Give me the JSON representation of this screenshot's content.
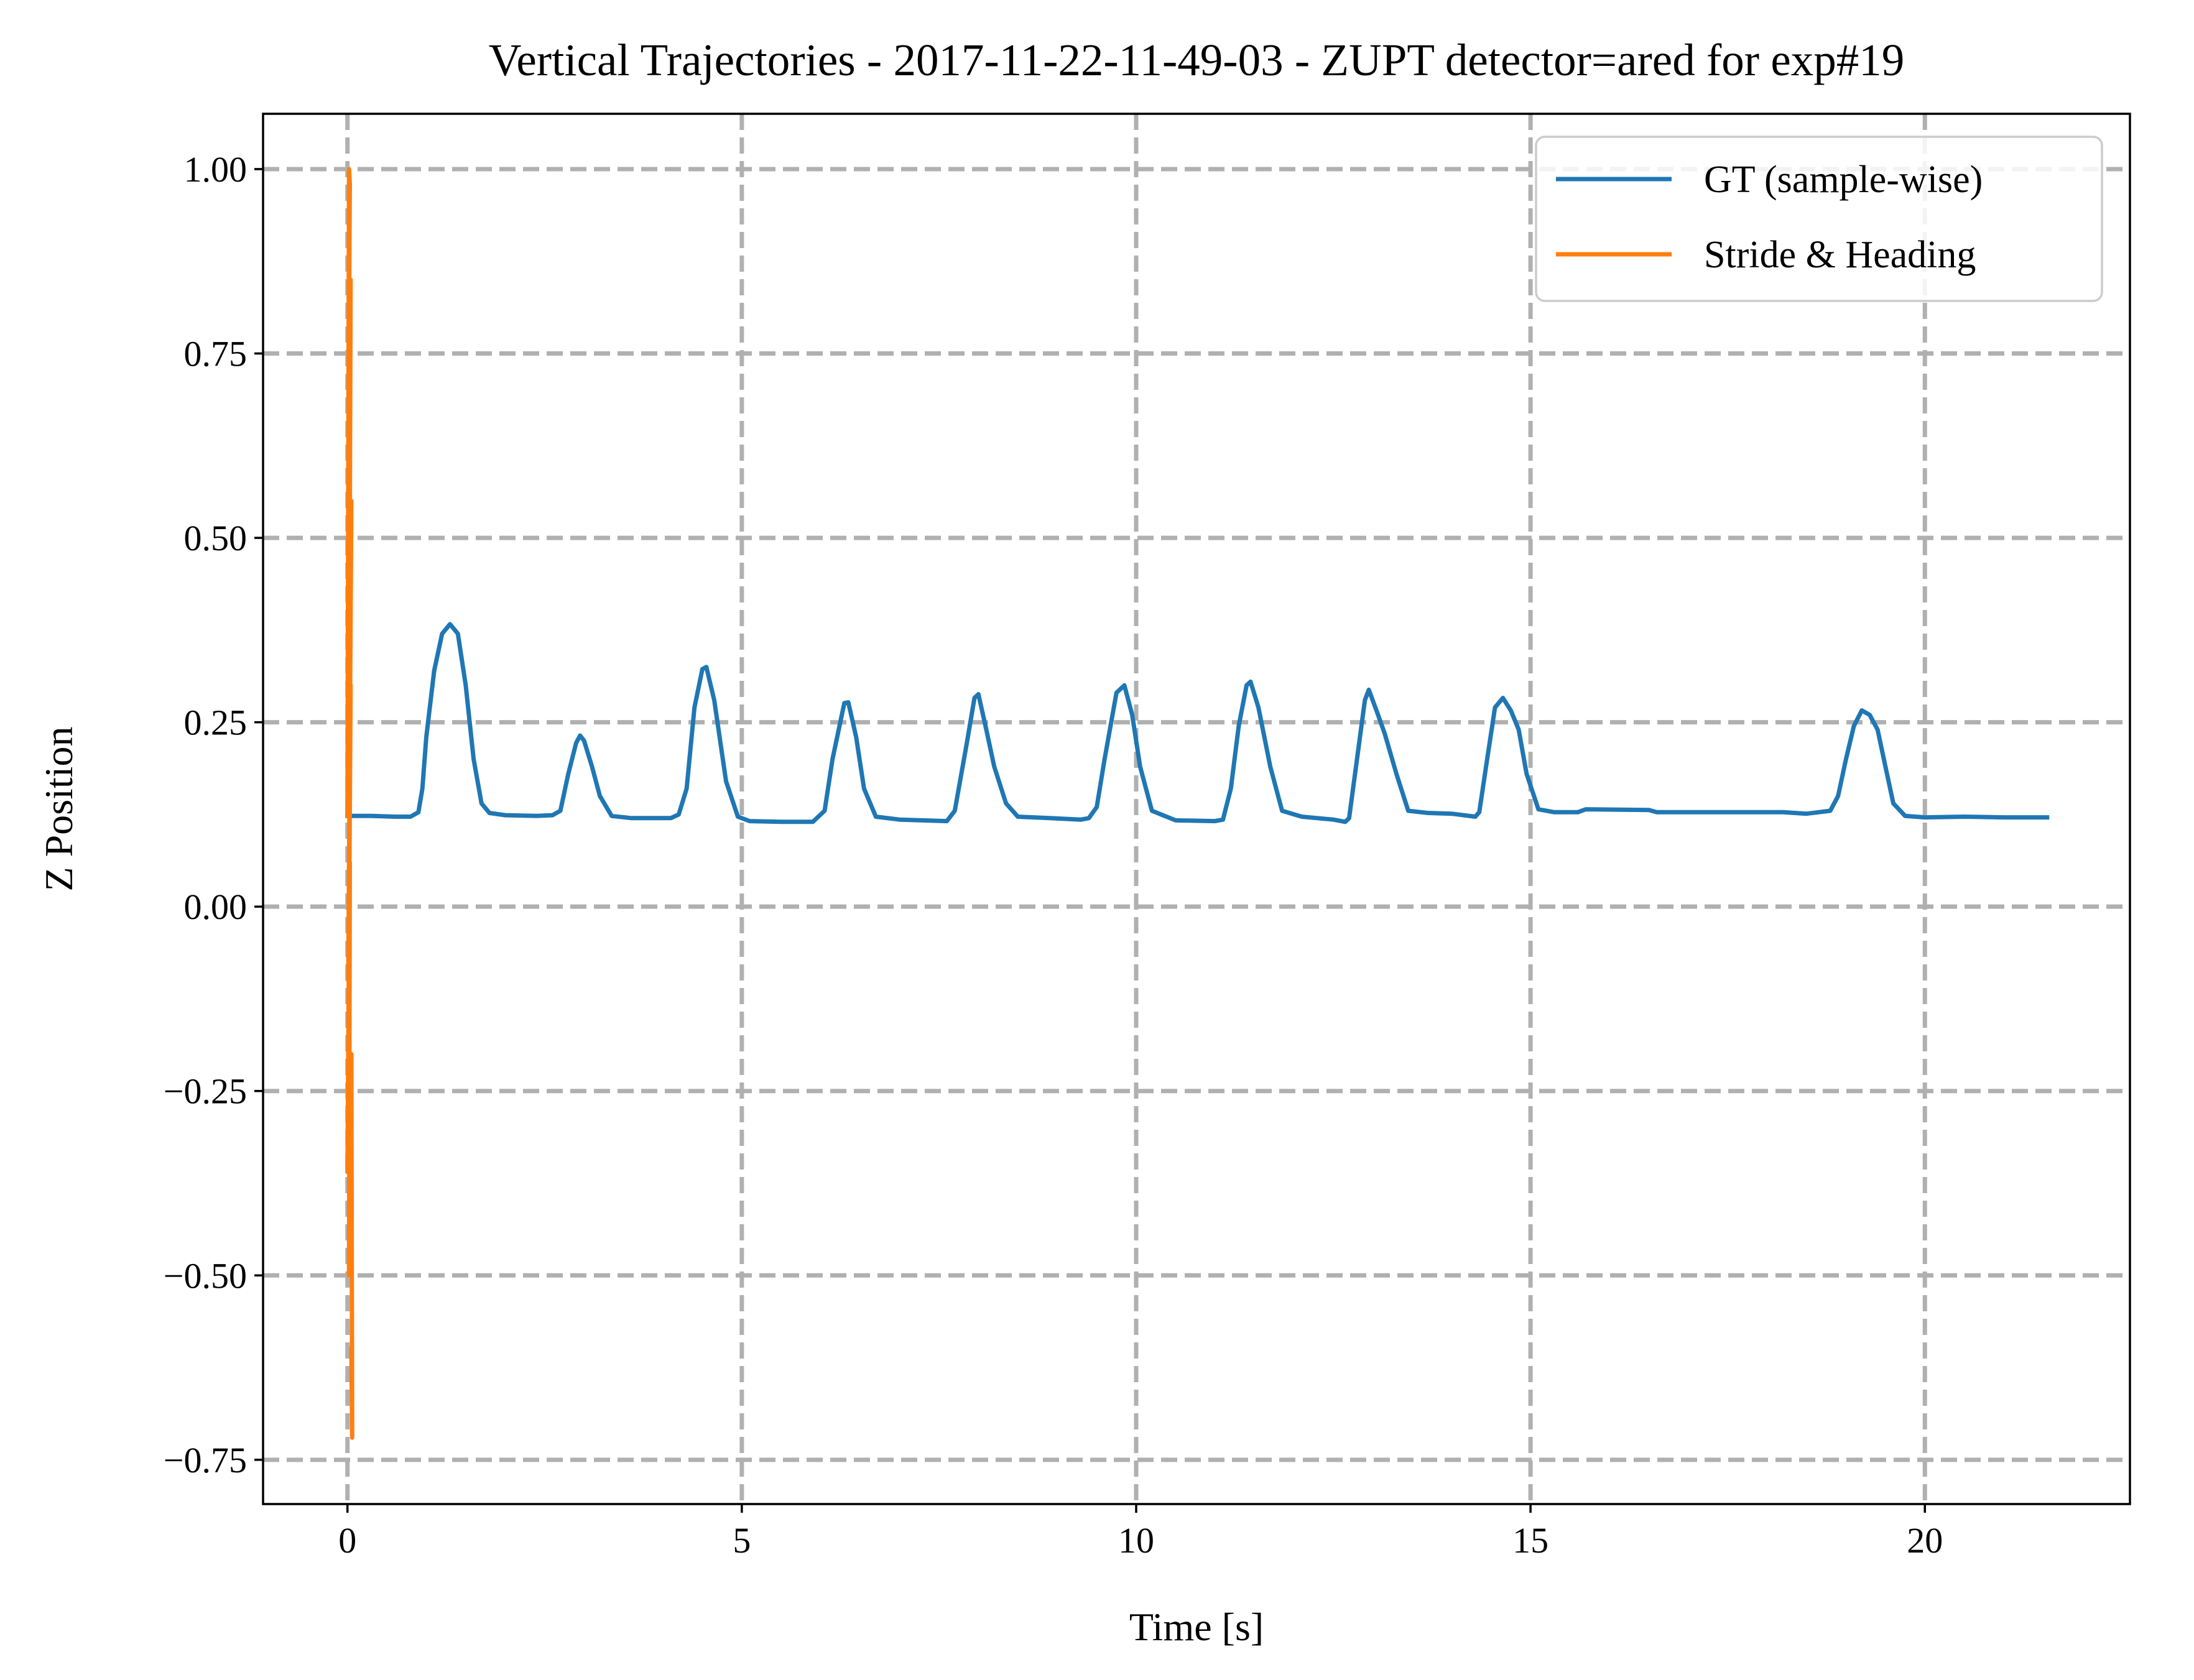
{
  "chart_data": {
    "type": "line",
    "title": "Vertical Trajectories - 2017-11-22-11-49-03 - ZUPT detector=ared for exp#19",
    "xlabel": "Time [s]",
    "ylabel": "Z Position",
    "xlim": [
      -1.07,
      22.6
    ],
    "ylim": [
      -0.81,
      1.075
    ],
    "xticks": [
      0,
      5,
      10,
      15,
      20
    ],
    "xtick_labels": [
      "0",
      "5",
      "10",
      "15",
      "20"
    ],
    "yticks": [
      1.0,
      0.75,
      0.5,
      0.25,
      0.0,
      -0.25,
      -0.5,
      -0.75
    ],
    "ytick_labels": [
      "1.00",
      "0.75",
      "0.50",
      "0.25",
      "0.00",
      "−0.25",
      "−0.50",
      "−0.75"
    ],
    "grid": true,
    "grid_style": "dashed",
    "legend_position": "upper right",
    "series": [
      {
        "name": "GT (sample-wise)",
        "color": "#1f77b4",
        "points": [
          [
            0.0,
            0.123
          ],
          [
            0.3,
            0.123
          ],
          [
            0.6,
            0.122
          ],
          [
            0.8,
            0.122
          ],
          [
            0.9,
            0.128
          ],
          [
            0.95,
            0.16
          ],
          [
            1.0,
            0.23
          ],
          [
            1.1,
            0.32
          ],
          [
            1.2,
            0.37
          ],
          [
            1.3,
            0.383
          ],
          [
            1.4,
            0.37
          ],
          [
            1.5,
            0.3
          ],
          [
            1.6,
            0.2
          ],
          [
            1.7,
            0.14
          ],
          [
            1.8,
            0.127
          ],
          [
            2.0,
            0.124
          ],
          [
            2.4,
            0.123
          ],
          [
            2.6,
            0.124
          ],
          [
            2.7,
            0.13
          ],
          [
            2.8,
            0.18
          ],
          [
            2.9,
            0.222
          ],
          [
            2.95,
            0.232
          ],
          [
            3.0,
            0.225
          ],
          [
            3.1,
            0.19
          ],
          [
            3.2,
            0.15
          ],
          [
            3.35,
            0.123
          ],
          [
            3.6,
            0.12
          ],
          [
            4.1,
            0.12
          ],
          [
            4.2,
            0.125
          ],
          [
            4.3,
            0.16
          ],
          [
            4.4,
            0.27
          ],
          [
            4.5,
            0.322
          ],
          [
            4.55,
            0.325
          ],
          [
            4.65,
            0.28
          ],
          [
            4.8,
            0.17
          ],
          [
            4.95,
            0.122
          ],
          [
            5.1,
            0.116
          ],
          [
            5.5,
            0.115
          ],
          [
            5.9,
            0.115
          ],
          [
            6.05,
            0.13
          ],
          [
            6.15,
            0.2
          ],
          [
            6.3,
            0.276
          ],
          [
            6.35,
            0.277
          ],
          [
            6.45,
            0.23
          ],
          [
            6.55,
            0.16
          ],
          [
            6.7,
            0.122
          ],
          [
            7.0,
            0.118
          ],
          [
            7.6,
            0.116
          ],
          [
            7.7,
            0.13
          ],
          [
            7.85,
            0.22
          ],
          [
            7.95,
            0.283
          ],
          [
            8.0,
            0.288
          ],
          [
            8.1,
            0.24
          ],
          [
            8.2,
            0.19
          ],
          [
            8.35,
            0.14
          ],
          [
            8.5,
            0.122
          ],
          [
            8.9,
            0.12
          ],
          [
            9.3,
            0.118
          ],
          [
            9.4,
            0.12
          ],
          [
            9.5,
            0.135
          ],
          [
            9.6,
            0.2
          ],
          [
            9.75,
            0.29
          ],
          [
            9.85,
            0.3
          ],
          [
            9.95,
            0.26
          ],
          [
            10.05,
            0.19
          ],
          [
            10.2,
            0.13
          ],
          [
            10.5,
            0.117
          ],
          [
            11.0,
            0.116
          ],
          [
            11.1,
            0.118
          ],
          [
            11.2,
            0.16
          ],
          [
            11.3,
            0.245
          ],
          [
            11.4,
            0.3
          ],
          [
            11.45,
            0.305
          ],
          [
            11.55,
            0.27
          ],
          [
            11.7,
            0.19
          ],
          [
            11.85,
            0.13
          ],
          [
            12.1,
            0.122
          ],
          [
            12.5,
            0.118
          ],
          [
            12.65,
            0.115
          ],
          [
            12.7,
            0.12
          ],
          [
            12.8,
            0.2
          ],
          [
            12.9,
            0.28
          ],
          [
            12.95,
            0.294
          ],
          [
            13.05,
            0.265
          ],
          [
            13.15,
            0.235
          ],
          [
            13.3,
            0.18
          ],
          [
            13.45,
            0.13
          ],
          [
            13.7,
            0.127
          ],
          [
            14.0,
            0.126
          ],
          [
            14.3,
            0.122
          ],
          [
            14.35,
            0.128
          ],
          [
            14.45,
            0.2
          ],
          [
            14.55,
            0.27
          ],
          [
            14.65,
            0.283
          ],
          [
            14.75,
            0.266
          ],
          [
            14.85,
            0.24
          ],
          [
            14.95,
            0.18
          ],
          [
            15.1,
            0.132
          ],
          [
            15.3,
            0.128
          ],
          [
            15.6,
            0.128
          ],
          [
            15.7,
            0.132
          ],
          [
            16.5,
            0.131
          ],
          [
            16.6,
            0.128
          ],
          [
            18.2,
            0.128
          ],
          [
            18.5,
            0.126
          ],
          [
            18.8,
            0.13
          ],
          [
            18.9,
            0.15
          ],
          [
            19.0,
            0.2
          ],
          [
            19.1,
            0.245
          ],
          [
            19.2,
            0.266
          ],
          [
            19.3,
            0.26
          ],
          [
            19.4,
            0.24
          ],
          [
            19.5,
            0.19
          ],
          [
            19.6,
            0.14
          ],
          [
            19.75,
            0.123
          ],
          [
            20.0,
            0.121
          ],
          [
            20.5,
            0.122
          ],
          [
            21.0,
            0.121
          ],
          [
            21.55,
            0.121
          ]
        ]
      },
      {
        "name": "Stride & Heading",
        "color": "#ff7f0e",
        "points": [
          [
            0.0,
            0.123
          ],
          [
            0.02,
            1.0
          ],
          [
            0.03,
            0.98
          ],
          [
            0.01,
            0.6
          ],
          [
            0.04,
            0.85
          ],
          [
            0.02,
            0.2
          ],
          [
            0.05,
            0.55
          ],
          [
            0.01,
            -0.1
          ],
          [
            0.04,
            0.3
          ],
          [
            0.0,
            -0.36
          ],
          [
            0.03,
            0.06
          ],
          [
            0.02,
            -0.5
          ],
          [
            0.05,
            -0.2
          ],
          [
            0.06,
            -0.72
          ],
          [
            0.05,
            -0.6
          ]
        ]
      }
    ]
  }
}
